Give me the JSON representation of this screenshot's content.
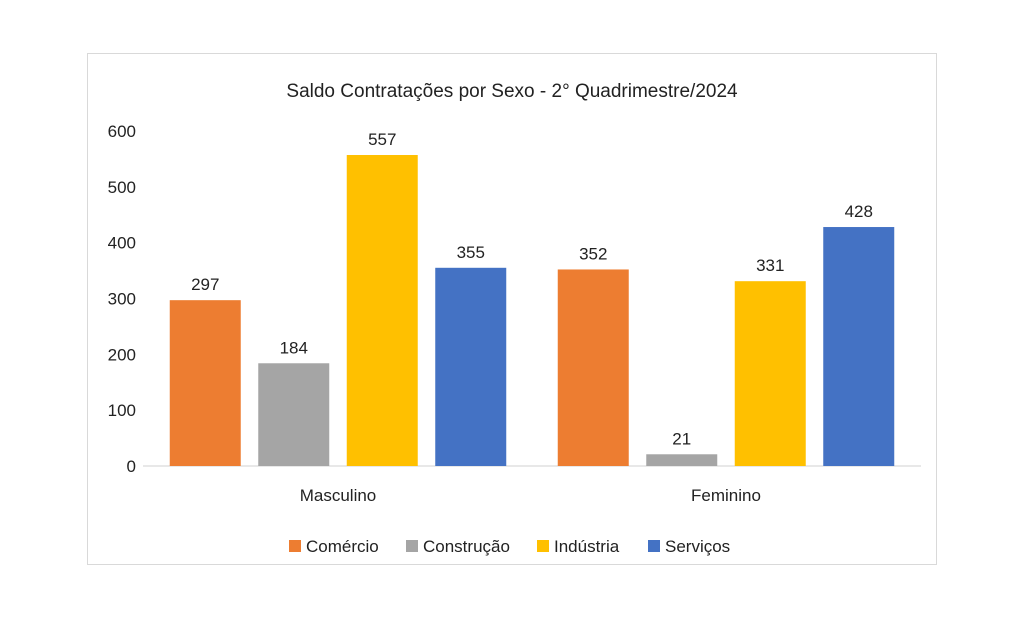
{
  "chart_data": {
    "type": "bar",
    "title": "Saldo Contratações por Sexo - 2° Quadrimestre/2024",
    "categories": [
      "Masculino",
      "Feminino"
    ],
    "series": [
      {
        "name": "Comércio",
        "color": "#ED7D31",
        "values": [
          297,
          352
        ]
      },
      {
        "name": "Construção",
        "color": "#A5A5A5",
        "values": [
          184,
          21
        ]
      },
      {
        "name": "Indústria",
        "color": "#FFC000",
        "values": [
          557,
          331
        ]
      },
      {
        "name": "Serviços",
        "color": "#4472C4",
        "values": [
          355,
          428
        ]
      }
    ],
    "ylim": [
      0,
      600
    ],
    "yticks": [
      0,
      100,
      200,
      300,
      400,
      500,
      600
    ],
    "grid": false,
    "legend": "bottom",
    "data_labels": true
  }
}
